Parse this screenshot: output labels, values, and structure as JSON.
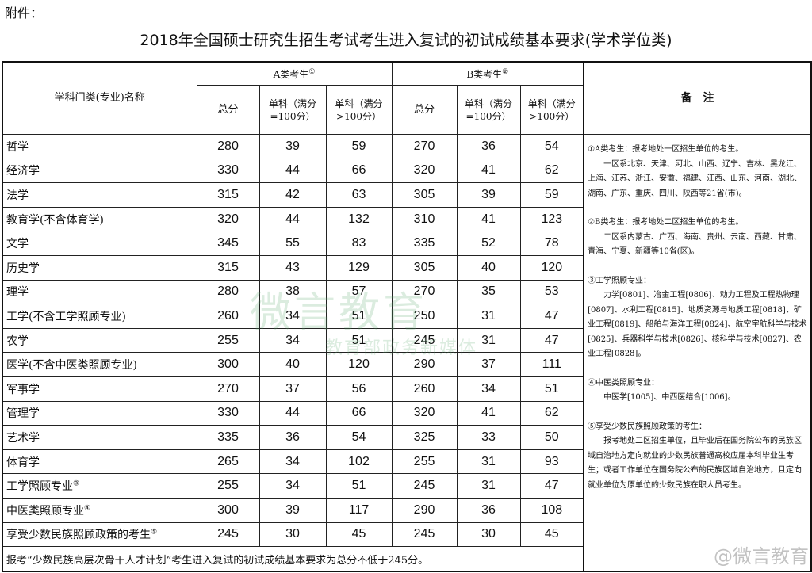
{
  "attachment_label": "附件：",
  "title": "2018年全国硕士研究生招生考试考生进入复试的初试成绩基本要求(学术学位类)",
  "header": {
    "subject_col": "学科门类(专业)名称",
    "group_a": "A类考生",
    "group_a_mark": "①",
    "group_b": "B类考生",
    "group_b_mark": "②",
    "total": "总分",
    "single_100": "单科（满分=100分）",
    "single_gt100": "单科（满分>100分）",
    "notes": "备　注"
  },
  "rows": [
    {
      "name": "哲学",
      "mark": "",
      "a": [
        "280",
        "39",
        "59"
      ],
      "b": [
        "270",
        "36",
        "54"
      ]
    },
    {
      "name": "经济学",
      "mark": "",
      "a": [
        "330",
        "44",
        "66"
      ],
      "b": [
        "320",
        "41",
        "62"
      ]
    },
    {
      "name": "法学",
      "mark": "",
      "a": [
        "315",
        "42",
        "63"
      ],
      "b": [
        "305",
        "39",
        "59"
      ]
    },
    {
      "name": "教育学(不含体育学)",
      "mark": "",
      "a": [
        "320",
        "44",
        "132"
      ],
      "b": [
        "310",
        "41",
        "123"
      ]
    },
    {
      "name": "文学",
      "mark": "",
      "a": [
        "345",
        "55",
        "83"
      ],
      "b": [
        "335",
        "52",
        "78"
      ]
    },
    {
      "name": "历史学",
      "mark": "",
      "a": [
        "315",
        "43",
        "129"
      ],
      "b": [
        "305",
        "40",
        "120"
      ]
    },
    {
      "name": "理学",
      "mark": "",
      "a": [
        "280",
        "38",
        "57"
      ],
      "b": [
        "270",
        "35",
        "53"
      ]
    },
    {
      "name": "工学(不含工学照顾专业)",
      "mark": "",
      "a": [
        "260",
        "34",
        "51"
      ],
      "b": [
        "250",
        "31",
        "47"
      ]
    },
    {
      "name": "农学",
      "mark": "",
      "a": [
        "255",
        "34",
        "51"
      ],
      "b": [
        "245",
        "31",
        "47"
      ]
    },
    {
      "name": "医学(不含中医类照顾专业)",
      "mark": "",
      "a": [
        "300",
        "40",
        "120"
      ],
      "b": [
        "290",
        "37",
        "111"
      ]
    },
    {
      "name": "军事学",
      "mark": "",
      "a": [
        "270",
        "37",
        "56"
      ],
      "b": [
        "260",
        "34",
        "51"
      ]
    },
    {
      "name": "管理学",
      "mark": "",
      "a": [
        "330",
        "44",
        "66"
      ],
      "b": [
        "320",
        "41",
        "62"
      ]
    },
    {
      "name": "艺术学",
      "mark": "",
      "a": [
        "335",
        "36",
        "54"
      ],
      "b": [
        "325",
        "33",
        "50"
      ]
    },
    {
      "name": "体育学",
      "mark": "",
      "a": [
        "265",
        "34",
        "102"
      ],
      "b": [
        "255",
        "31",
        "93"
      ]
    },
    {
      "name": "工学照顾专业",
      "mark": "③",
      "a": [
        "255",
        "34",
        "51"
      ],
      "b": [
        "245",
        "31",
        "47"
      ]
    },
    {
      "name": "中医类照顾专业",
      "mark": "④",
      "a": [
        "300",
        "39",
        "117"
      ],
      "b": [
        "290",
        "36",
        "108"
      ]
    },
    {
      "name": "享受少数民族照顾政策的考生",
      "mark": "⑤",
      "a": [
        "245",
        "30",
        "45"
      ],
      "b": [
        "245",
        "30",
        "45"
      ]
    }
  ],
  "footer": "报考“少数民族高层次骨干人才计划”考生进入复试的初试成绩基本要求为总分不低于245分。",
  "notes": [
    {
      "head": "①A类考生：报考地处一区招生单位的考生。",
      "body": "一区系北京、天津、河北、山西、辽宁、吉林、黑龙江、上海、江苏、浙江、安徽、福建、江西、山东、河南、湖北、湖南、广东、重庆、四川、陕西等21省(市)。"
    },
    {
      "head": "②B类考生：报考地处二区招生单位的考生。",
      "body": "二区系内蒙古、广西、海南、贵州、云南、西藏、甘肃、青海、宁夏、新疆等10省(区)。"
    },
    {
      "head": "③工学照顾专业：",
      "body": "力学[0801]、冶金工程[0806]、动力工程及工程热物理[0807]、水利工程[0815]、地质资源与地质工程[0818]、矿业工程[0819]、船舶与海洋工程[0824]、航空宇航科学与技术[0825]、兵器科学与技术[0826]、核科学与技术[0827]、农业工程[0828]。"
    },
    {
      "head": "④中医类照顾专业：",
      "body": "中医学[1005]、中西医结合[1006]。"
    },
    {
      "head": "⑤享受少数民族照顾政策的考生：",
      "body": "报考地处二区招生单位，且毕业后在国务院公布的民族区域自治地方定向就业的少数民族普通高校应届本科毕业生考生；或者工作单位在国务院公布的民族区域自治地方，且定向就业单位为原单位的少数民族在职人员考生。"
    }
  ],
  "watermark": {
    "line1": "微言教育",
    "line2": "教育部政务新媒体",
    "corner": "@微言教育"
  }
}
